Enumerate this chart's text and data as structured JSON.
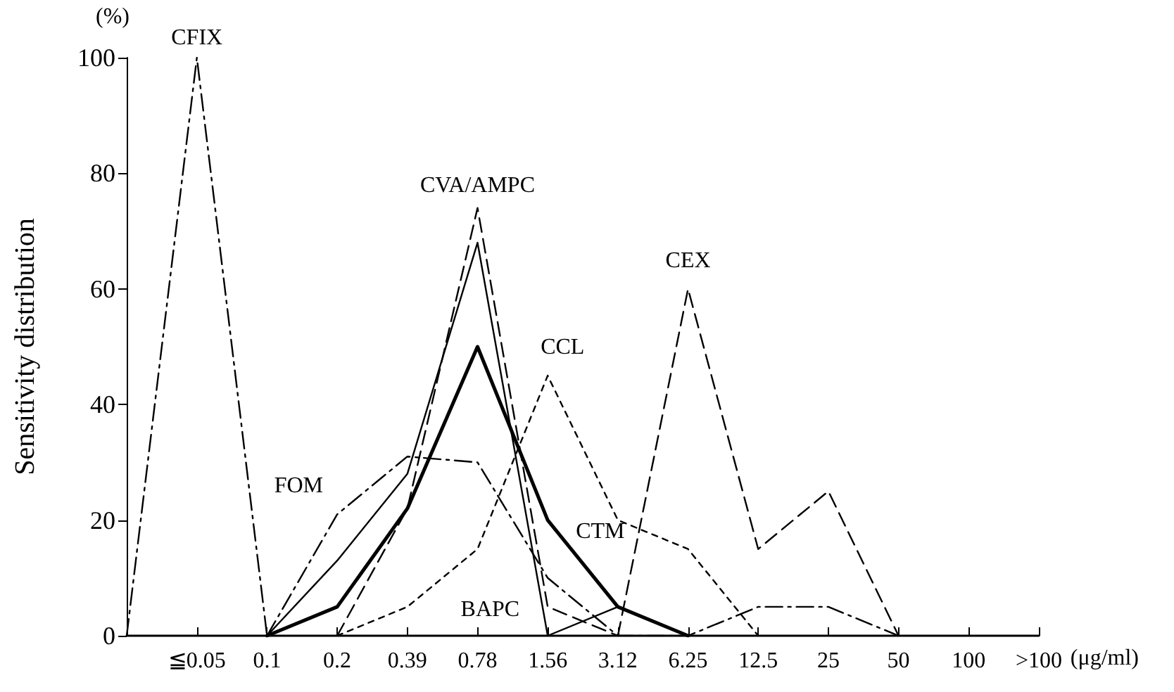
{
  "chart_data": {
    "type": "line",
    "ylabel": "Sensitivity distribution",
    "xlabel": "(μg/ml)",
    "categories": [
      null,
      "≦0.05",
      "0.1",
      "0.2",
      "0.39",
      "0.78",
      "1.56",
      "3.12",
      "6.25",
      "12.5",
      "25",
      "50",
      "100",
      ">100"
    ],
    "ylim": [
      0,
      100
    ],
    "yticks": [
      0,
      20,
      40,
      60,
      80,
      100
    ],
    "grid": false,
    "marker": "none",
    "series": [
      {
        "color": "#000000",
        "line_style": "dashdot",
        "values": [
          0,
          100,
          0,
          null,
          null,
          null,
          null,
          null,
          null,
          null,
          null,
          null,
          null,
          null
        ]
      },
      {
        "color": "#000000",
        "line_style": "dashed",
        "values": [
          null,
          null,
          null,
          0,
          22,
          74,
          5,
          0,
          null,
          null,
          null,
          null,
          null,
          null
        ]
      },
      {
        "color": "#000000",
        "line_style": "solid",
        "values": [
          null,
          null,
          0,
          13,
          28,
          68,
          0,
          5,
          0,
          null,
          null,
          null,
          null,
          null
        ]
      },
      {
        "color": "#000000",
        "line_style": "solid",
        "values": [
          null,
          null,
          0,
          5,
          22,
          50,
          20,
          5,
          0,
          null,
          null,
          null,
          null,
          null
        ]
      },
      {
        "color": "#000000",
        "line_style": "dashdot",
        "values": [
          null,
          null,
          0,
          21,
          31,
          30,
          10,
          0,
          0,
          5,
          5,
          0,
          null,
          null
        ]
      },
      {
        "color": "#000000",
        "line_style": "dotted",
        "values": [
          null,
          null,
          null,
          0,
          5,
          15,
          45,
          20,
          15,
          0,
          null,
          null,
          null,
          null
        ]
      },
      {
        "color": "#000000",
        "line_style": "dashed",
        "values": [
          null,
          null,
          null,
          null,
          null,
          null,
          null,
          0,
          60,
          15,
          25,
          0,
          null,
          null
        ]
      }
    ],
    "annotations": [
      "(%)",
      {
        "text": "CFIX",
        "x": "≦0.05",
        "y": 100
      },
      {
        "text": "CVA/AMPC",
        "x": "0.78",
        "y": 74
      },
      {
        "text": "CCL",
        "x": "1.56",
        "y": 45
      },
      {
        "text": "CEX",
        "x": "6.25",
        "y": 60
      },
      {
        "text": "FOM",
        "x": "0.2",
        "y": 21
      },
      {
        "text": "CTM",
        "x": "1.56",
        "y": 20
      },
      {
        "text": "BAPC",
        "x": "1.56",
        "y": 5
      }
    ]
  }
}
